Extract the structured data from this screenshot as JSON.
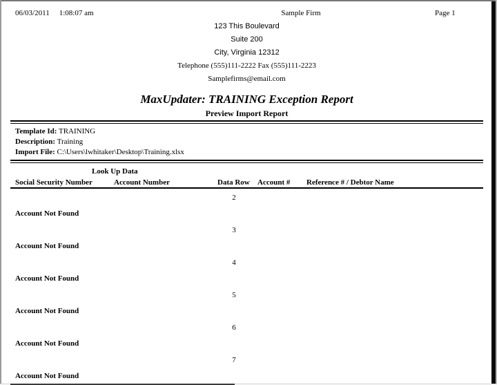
{
  "report": {
    "date": "06/03/2011",
    "time": "1:08:07 am",
    "page_label": "Page  1",
    "firm": {
      "name": "Sample Firm",
      "address_line1": "123 This Boulevard",
      "address_line2": "Suite 200",
      "address_line3": "City, Virginia 12312",
      "phone_fax": "Telephone (555)111-2222  Fax (555)111-2223",
      "email": "Samplefirms@email.com"
    },
    "title": "MaxUpdater: TRAINING Exception Report",
    "subtitle": "Preview Import Report",
    "template": {
      "template_id_label": "Template Id:",
      "template_id": "TRAINING",
      "description_label": "Description:",
      "description": "Training",
      "import_file_label": "Import File:",
      "import_file": "C:\\Users\\lwhitaker\\Desktop\\Training.xlsx"
    },
    "table": {
      "group_header": "Look Up Data",
      "columns": [
        "Social Security Number",
        "Account Number",
        "Data Row",
        "Account #",
        "Reference # / Debtor Name"
      ],
      "rows": [
        {
          "data_row": "2",
          "status": "Account Not Found"
        },
        {
          "data_row": "3",
          "status": "Account Not Found"
        },
        {
          "data_row": "4",
          "status": "Account Not Found"
        },
        {
          "data_row": "5",
          "status": "Account Not Found"
        },
        {
          "data_row": "6",
          "status": "Account Not Found"
        },
        {
          "data_row": "7",
          "status": "Account Not Found"
        }
      ]
    }
  }
}
